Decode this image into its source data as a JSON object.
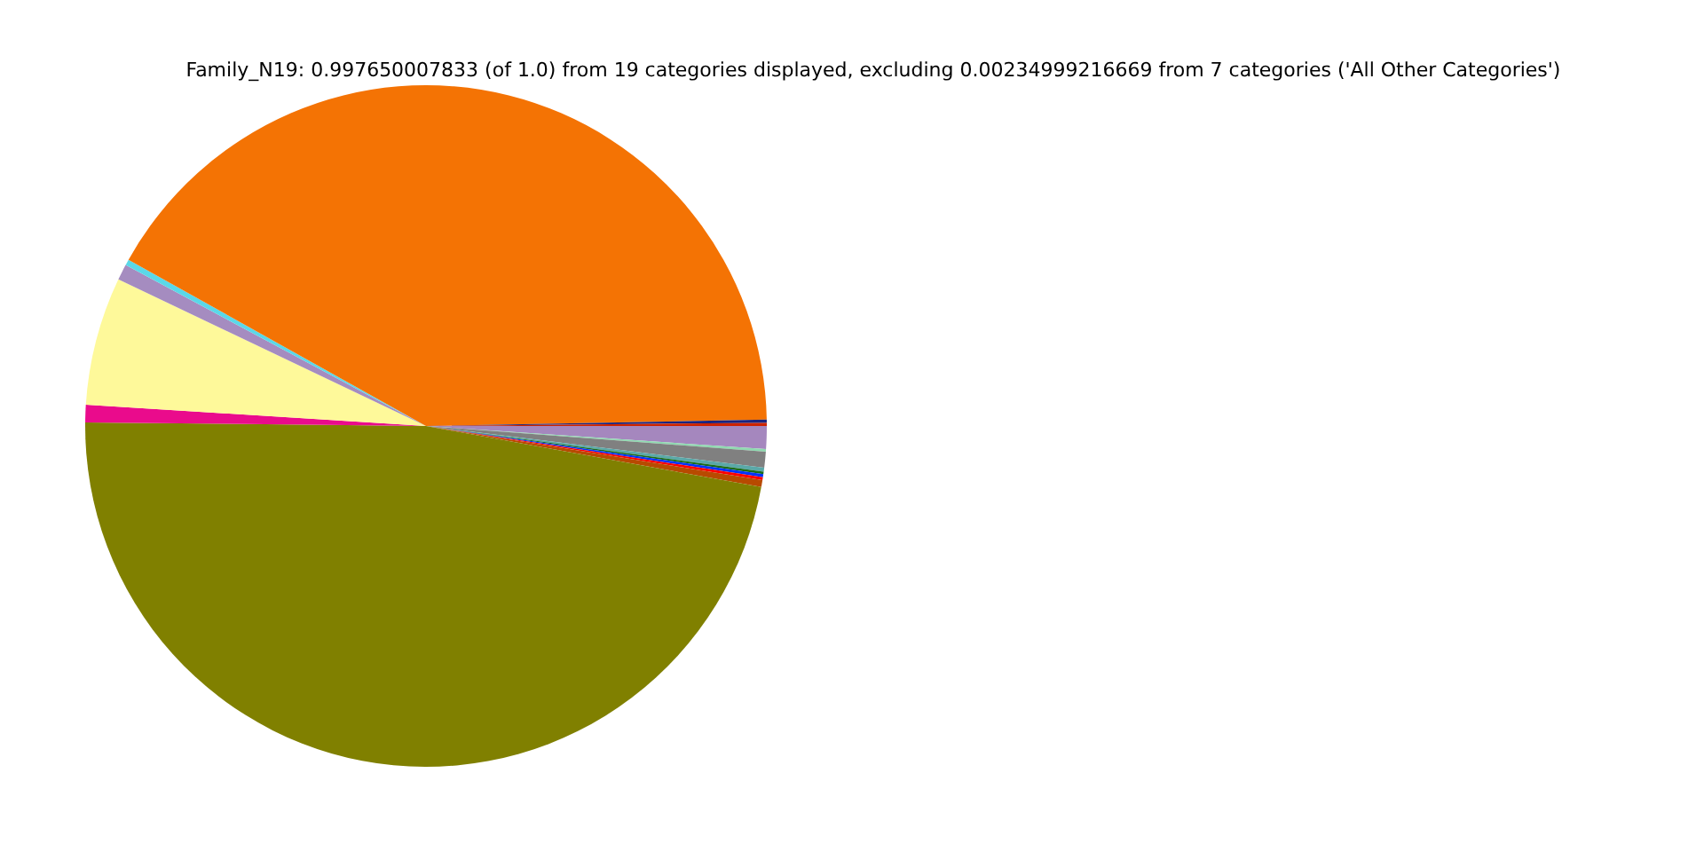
{
  "chart_data": {
    "type": "pie",
    "title": "Family_N19: 0.997650007833 (of 1.0) from 19 categories displayed, excluding 0.00234999216669 from 7 categories ('All Other Categories')",
    "categories": [
      null,
      null,
      null,
      null,
      null,
      null,
      null,
      null,
      null,
      null,
      null,
      null,
      null,
      null,
      null,
      null
    ],
    "values": [
      1.08,
      0.12,
      0.75,
      0.19,
      0.12,
      0.14,
      0.14,
      0.33,
      47.3,
      0.83,
      6.08,
      0.75,
      0.28,
      41.59,
      0.15,
      0.15
    ],
    "colors": [
      "#a587be",
      "#8fd9b0",
      "#808080",
      "#5aa8a8",
      "#1a6b1a",
      "#0033ff",
      "#ff0000",
      "#b84a00",
      "#808000",
      "#ea0b8c",
      "#fef99a",
      "#a58cc0",
      "#5ad8e8",
      "#f47304",
      "#1a237e",
      "#cc2200"
    ],
    "legend": false
  }
}
